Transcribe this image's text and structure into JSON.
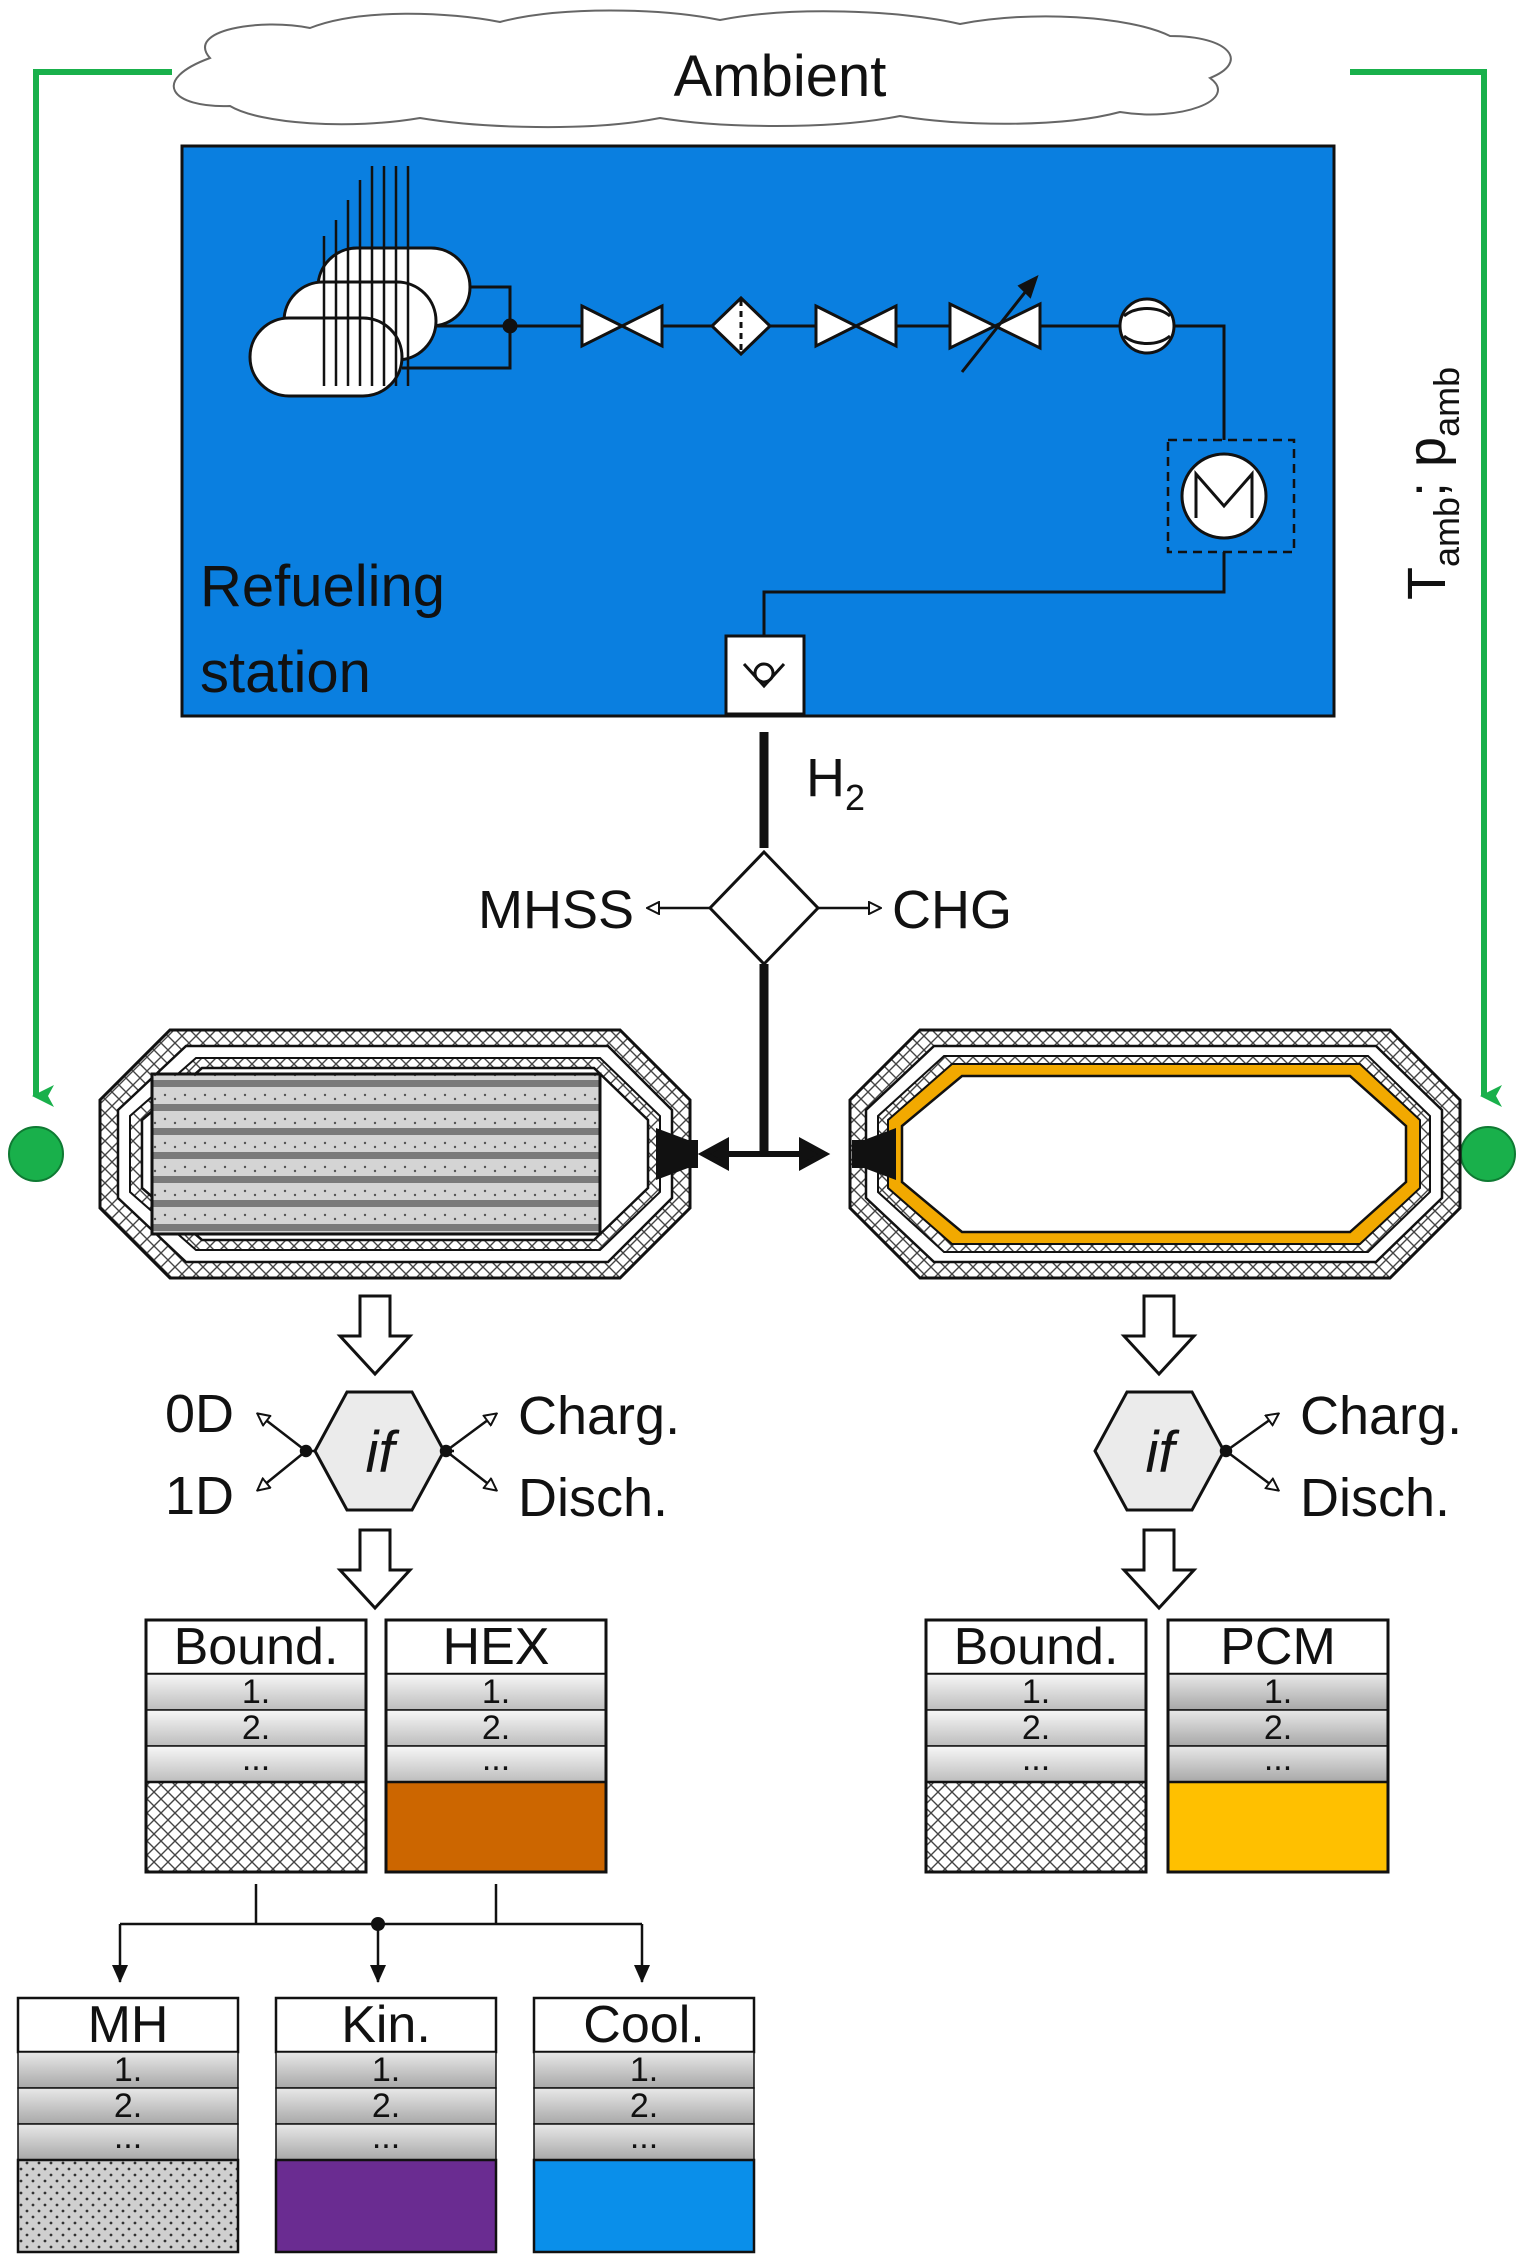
{
  "ambient": {
    "label": "Ambient"
  },
  "ambient_params": {
    "T": "T",
    "T_sub": "amb",
    "sep": "; ",
    "p": "p",
    "p_sub": "amb"
  },
  "station": {
    "label_line1": "Refueling",
    "label_line2": "station"
  },
  "h2": {
    "main": "H",
    "sub": "2"
  },
  "branch": {
    "left": "MHSS",
    "right": "CHG"
  },
  "mhss_decision": {
    "center": "if",
    "left_top": "0D",
    "left_bottom": "1D",
    "right_top": "Charg.",
    "right_bottom": "Disch."
  },
  "chg_decision": {
    "center": "if",
    "right_top": "Charg.",
    "right_bottom": "Disch."
  },
  "cards": {
    "mhss_bound": {
      "title": "Bound.",
      "row1": "1.",
      "row2": "2.",
      "row3": "..."
    },
    "hex": {
      "title": "HEX",
      "row1": "1.",
      "row2": "2.",
      "row3": "..."
    },
    "chg_bound": {
      "title": "Bound.",
      "row1": "1.",
      "row2": "2.",
      "row3": "..."
    },
    "pcm": {
      "title": "PCM",
      "row1": "1.",
      "row2": "2.",
      "row3": "..."
    },
    "mh": {
      "title": "MH",
      "row1": "1.",
      "row2": "2.",
      "row3": "..."
    },
    "kin": {
      "title": "Kin.",
      "row1": "1.",
      "row2": "2.",
      "row3": "..."
    },
    "cool": {
      "title": "Cool.",
      "row1": "1.",
      "row2": "2.",
      "row3": "..."
    }
  },
  "colors": {
    "station_fill": "#0a7fe0",
    "signal_green": "#19b04b",
    "hex_fill": "#cc6600",
    "pcm_fill": "#ffc000",
    "pcm_liner": "#f2a900",
    "kin_fill": "#6a2c91",
    "cool_fill": "#0a8fea"
  }
}
